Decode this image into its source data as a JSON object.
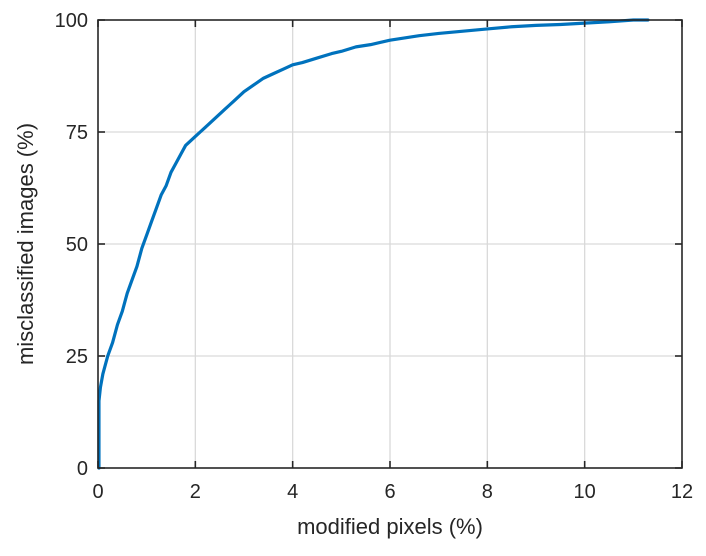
{
  "chart_data": {
    "type": "line",
    "title": "",
    "xlabel": "modified pixels (%)",
    "ylabel": "misclassified images (%)",
    "xlim": [
      0,
      12
    ],
    "ylim": [
      0,
      100
    ],
    "x_ticks": [
      0,
      2,
      4,
      6,
      8,
      10,
      12
    ],
    "y_ticks": [
      0,
      25,
      50,
      75,
      100
    ],
    "x_tick_labels": [
      "0",
      "2",
      "4",
      "6",
      "8",
      "10",
      "12"
    ],
    "y_tick_labels": [
      "0",
      "25",
      "50",
      "75",
      "100"
    ],
    "grid": true,
    "legend": "none",
    "colors": {
      "series": "#0072BD",
      "axis": "#262626",
      "grid": "#d9d9d9"
    },
    "series": [
      {
        "x": [
          0.02,
          0.02,
          0.05,
          0.1,
          0.2,
          0.3,
          0.4,
          0.5,
          0.6,
          0.7,
          0.8,
          0.9,
          1.0,
          1.1,
          1.2,
          1.3,
          1.4,
          1.5,
          1.6,
          1.7,
          1.8,
          1.9,
          2.0,
          2.1,
          2.2,
          2.3,
          2.4,
          2.5,
          2.6,
          2.7,
          2.8,
          2.9,
          3.0,
          3.2,
          3.4,
          3.6,
          3.8,
          4.0,
          4.2,
          4.5,
          4.8,
          5.0,
          5.3,
          5.6,
          6.0,
          6.3,
          6.6,
          7.0,
          7.5,
          8.0,
          8.5,
          9.0,
          9.5,
          10.0,
          10.5,
          11.0,
          11.3
        ],
        "y": [
          0,
          15,
          18,
          21,
          25,
          28,
          32,
          35,
          39,
          42,
          45,
          49,
          52,
          55,
          58,
          61,
          63,
          66,
          68,
          70,
          72,
          73,
          74,
          75,
          76,
          77,
          78,
          79,
          80,
          81,
          82,
          83,
          84,
          85.5,
          87,
          88,
          89,
          90,
          90.5,
          91.5,
          92.5,
          93,
          94,
          94.5,
          95.5,
          96,
          96.5,
          97,
          97.5,
          98,
          98.5,
          98.8,
          99,
          99.3,
          99.6,
          100,
          100
        ]
      }
    ]
  }
}
